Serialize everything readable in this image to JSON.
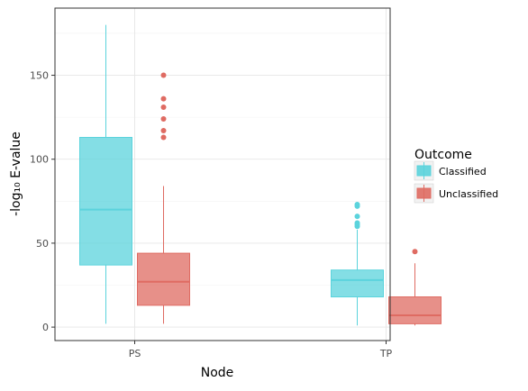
{
  "chart_data": {
    "type": "box",
    "xlabel": "Node",
    "ylabel": "-log₁₀ E-value",
    "categories": [
      "PS",
      "TP"
    ],
    "yticks": [
      0,
      50,
      100,
      150
    ],
    "ylim": [
      -8,
      190
    ],
    "grid": true,
    "legend": {
      "title": "Outcome",
      "position": "right",
      "entries": [
        "Classified",
        "Unclassified"
      ]
    },
    "colors": {
      "Classified": "#5bd3dc",
      "Unclassified": "#df6b62"
    },
    "series": [
      {
        "name": "Classified",
        "boxes": [
          {
            "category": "PS",
            "min": 2,
            "q1": 37,
            "median": 70,
            "q3": 113,
            "max": 180,
            "outliers": []
          },
          {
            "category": "TP",
            "min": 1,
            "q1": 18,
            "median": 28,
            "q3": 34,
            "max": 58,
            "outliers": [
              60,
              61,
              62,
              66,
              72,
              73
            ]
          }
        ]
      },
      {
        "name": "Unclassified",
        "boxes": [
          {
            "category": "PS",
            "min": 2,
            "q1": 13,
            "median": 27,
            "q3": 44,
            "max": 84,
            "outliers": [
              113,
              117,
              124,
              131,
              136,
              150
            ]
          },
          {
            "category": "TP",
            "min": 1,
            "q1": 2,
            "median": 7,
            "q3": 18,
            "max": 38,
            "outliers": [
              45
            ]
          }
        ]
      }
    ]
  }
}
